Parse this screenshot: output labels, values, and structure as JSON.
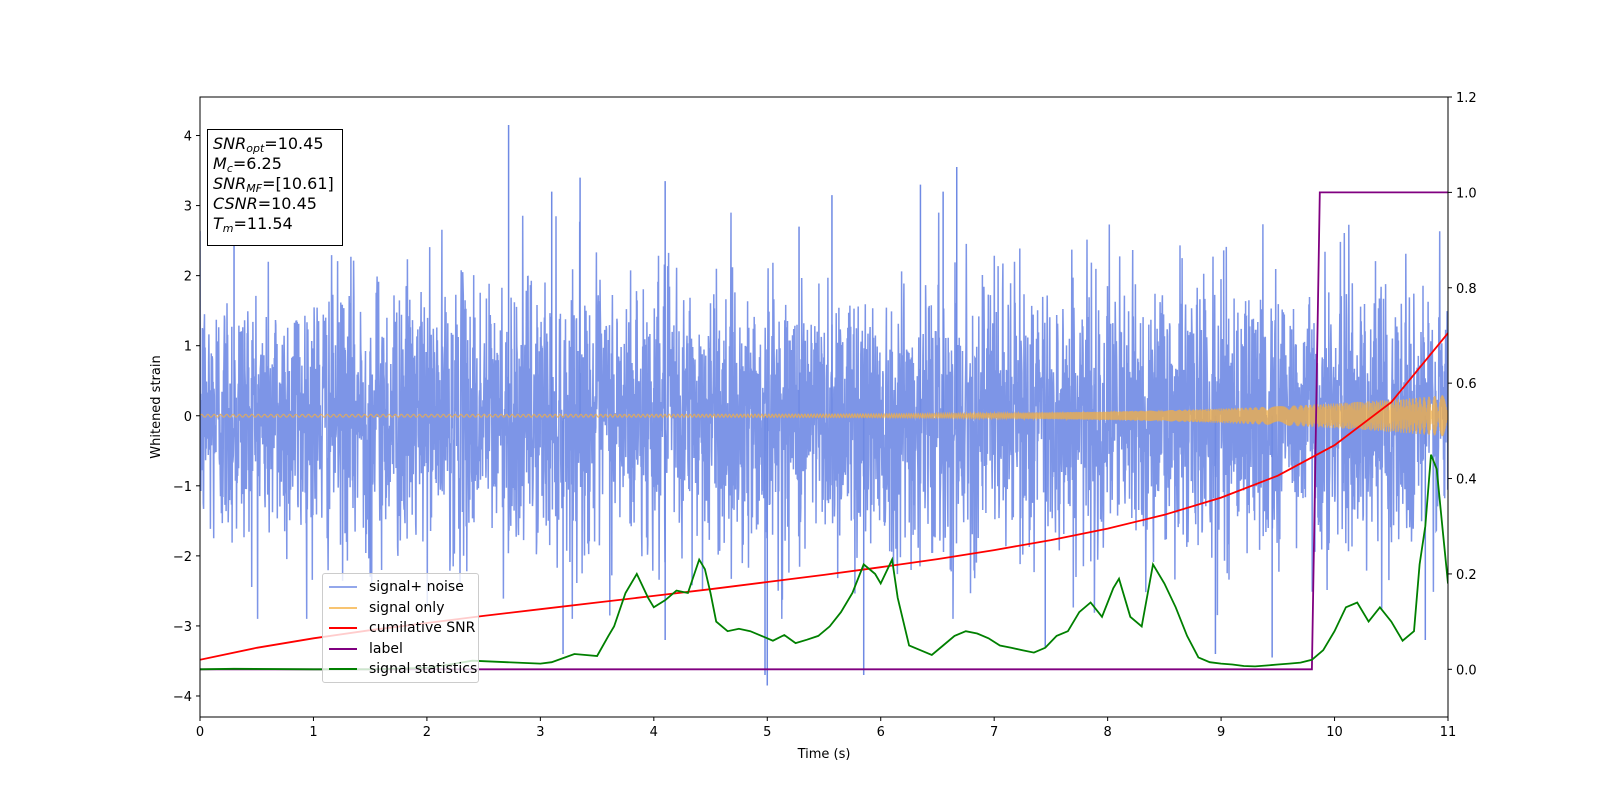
{
  "chart_data": {
    "type": "line",
    "xlabel": "Time (s)",
    "ylabel": "Whitened strain",
    "xlim": [
      0,
      11
    ],
    "ylim": [
      -4.3,
      4.55
    ],
    "y2lim": [
      -0.1,
      1.2
    ],
    "x_ticks": [
      "0",
      "1",
      "2",
      "3",
      "4",
      "5",
      "6",
      "7",
      "8",
      "9",
      "10",
      "11"
    ],
    "y_ticks": [
      "4",
      "3",
      "2",
      "1",
      "0",
      "−1",
      "−2",
      "−3",
      "−4"
    ],
    "y2_ticks": [
      "1.2",
      "1.0",
      "0.8",
      "0.6",
      "0.4",
      "0.2",
      "0.0"
    ],
    "grid": false,
    "legend_position": "lower-left",
    "info_box": {
      "snr_opt": "=10.45",
      "mc": "=6.25",
      "snr_mf": "=[10.61]",
      "csnr": "=10.45",
      "tm": "=11.54"
    },
    "series": [
      {
        "name": "signal+ noise",
        "color": "#6f8ae4",
        "axis": "left",
        "kind": "whitened noise, amplitude ~1 with spikes",
        "spikes": [
          [
            0.3,
            2.7
          ],
          [
            1.5,
            -2.3
          ],
          [
            2.72,
            4.15
          ],
          [
            3.1,
            3.2
          ],
          [
            3.35,
            3.4
          ],
          [
            3.2,
            -3.4
          ],
          [
            4.1,
            3.35
          ],
          [
            4.1,
            -3.2
          ],
          [
            4.98,
            -3.7
          ],
          [
            5.0,
            -3.85
          ],
          [
            5.28,
            2.7
          ],
          [
            5.57,
            3.15
          ],
          [
            5.85,
            -3.7
          ],
          [
            6.35,
            3.3
          ],
          [
            6.55,
            3.2
          ],
          [
            6.67,
            3.55
          ],
          [
            7.45,
            -3.3
          ],
          [
            8.95,
            -3.4
          ],
          [
            9.45,
            -3.45
          ],
          [
            10.8,
            -3.2
          ]
        ]
      },
      {
        "name": "signal only",
        "color": "#f5b041",
        "axis": "left",
        "kind": "chirp, amplitude growing from ~0.02 to ~0.3 at 11 s"
      },
      {
        "name": "cumilative SNR",
        "color": "#ff0000",
        "axis": "right",
        "x": [
          0,
          0.5,
          1,
          1.5,
          2,
          2.5,
          3,
          3.5,
          4,
          4.5,
          5,
          5.5,
          6,
          6.5,
          7,
          7.5,
          8,
          8.5,
          9,
          9.5,
          10,
          10.5,
          11
        ],
        "y": [
          0.02,
          0.045,
          0.065,
          0.082,
          0.097,
          0.112,
          0.126,
          0.14,
          0.154,
          0.168,
          0.183,
          0.198,
          0.214,
          0.231,
          0.25,
          0.271,
          0.295,
          0.324,
          0.36,
          0.406,
          0.47,
          0.56,
          0.705
        ]
      },
      {
        "name": "label",
        "color": "#800080",
        "axis": "right",
        "x": [
          0,
          9.8,
          9.87,
          11
        ],
        "y": [
          0,
          0,
          1,
          1
        ]
      },
      {
        "name": "signal statistics",
        "color": "#008000",
        "axis": "right",
        "x": [
          0,
          0.3,
          1,
          1.5,
          2,
          2.2,
          2.4,
          2.7,
          3.0,
          3.1,
          3.3,
          3.4,
          3.5,
          3.6,
          3.65,
          3.75,
          3.85,
          3.95,
          4.0,
          4.1,
          4.2,
          4.3,
          4.4,
          4.45,
          4.5,
          4.55,
          4.65,
          4.75,
          4.85,
          4.95,
          5.05,
          5.15,
          5.25,
          5.35,
          5.45,
          5.55,
          5.65,
          5.75,
          5.85,
          5.95,
          6.0,
          6.1,
          6.15,
          6.25,
          6.35,
          6.45,
          6.55,
          6.65,
          6.75,
          6.85,
          6.95,
          7.05,
          7.15,
          7.25,
          7.35,
          7.45,
          7.55,
          7.65,
          7.75,
          7.85,
          7.95,
          8.05,
          8.1,
          8.2,
          8.3,
          8.4,
          8.5,
          8.6,
          8.7,
          8.8,
          8.9,
          9.0,
          9.1,
          9.2,
          9.3,
          9.4,
          9.5,
          9.6,
          9.7,
          9.8,
          9.9,
          10.0,
          10.1,
          10.2,
          10.3,
          10.4,
          10.5,
          10.6,
          10.7,
          10.75,
          10.8,
          10.85,
          10.9,
          10.95,
          11.0
        ],
        "y": [
          0,
          0.001,
          0,
          0,
          0.003,
          0.01,
          0.018,
          0.015,
          0.012,
          0.015,
          0.032,
          0.03,
          0.028,
          0.07,
          0.09,
          0.16,
          0.2,
          0.15,
          0.13,
          0.145,
          0.165,
          0.16,
          0.23,
          0.21,
          0.16,
          0.1,
          0.08,
          0.085,
          0.08,
          0.07,
          0.06,
          0.072,
          0.055,
          0.062,
          0.07,
          0.09,
          0.12,
          0.16,
          0.22,
          0.2,
          0.18,
          0.23,
          0.15,
          0.05,
          0.04,
          0.03,
          0.05,
          0.07,
          0.08,
          0.075,
          0.065,
          0.05,
          0.045,
          0.04,
          0.035,
          0.045,
          0.07,
          0.08,
          0.12,
          0.14,
          0.11,
          0.17,
          0.19,
          0.11,
          0.09,
          0.22,
          0.18,
          0.13,
          0.07,
          0.025,
          0.015,
          0.012,
          0.01,
          0.007,
          0.006,
          0.008,
          0.01,
          0.012,
          0.014,
          0.02,
          0.04,
          0.08,
          0.13,
          0.14,
          0.1,
          0.13,
          0.1,
          0.06,
          0.08,
          0.22,
          0.3,
          0.45,
          0.42,
          0.3,
          0.18
        ]
      }
    ]
  }
}
